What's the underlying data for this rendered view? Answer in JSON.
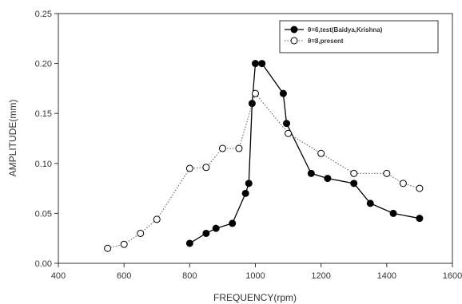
{
  "chart_data": {
    "type": "line",
    "xlabel": "FREQUENCY(rpm)",
    "ylabel": "AMPLITUDE(mm)",
    "xlim": [
      400,
      1600
    ],
    "ylim": [
      0,
      0.25
    ],
    "xticks": [
      400,
      600,
      800,
      1000,
      1200,
      1400,
      1600
    ],
    "yticks": [
      0.0,
      0.05,
      0.1,
      0.15,
      0.2,
      0.25
    ],
    "xtick_labels": [
      "400",
      "600",
      "800",
      "1000",
      "1200",
      "1400",
      "1600"
    ],
    "ytick_labels": [
      "0.00",
      "0.05",
      "0.10",
      "0.15",
      "0.20",
      "0.25"
    ],
    "grid": false,
    "legend_position": "top-right",
    "series": [
      {
        "name": "θ=6,test(Baidya,Krishna)",
        "marker": "filled-circle",
        "line_style": "solid",
        "color": "#000000",
        "x": [
          800,
          850,
          880,
          930,
          970,
          980,
          990,
          1000,
          1020,
          1085,
          1095,
          1170,
          1220,
          1300,
          1350,
          1420,
          1500
        ],
        "y": [
          0.02,
          0.03,
          0.035,
          0.04,
          0.07,
          0.08,
          0.16,
          0.2,
          0.2,
          0.17,
          0.14,
          0.09,
          0.085,
          0.08,
          0.06,
          0.05,
          0.045
        ]
      },
      {
        "name": "θ=8,present",
        "marker": "open-circle",
        "line_style": "dotted",
        "color": "#000000",
        "x": [
          550,
          600,
          650,
          700,
          800,
          850,
          900,
          950,
          1000,
          1100,
          1200,
          1300,
          1400,
          1450,
          1500
        ],
        "y": [
          0.015,
          0.019,
          0.03,
          0.044,
          0.095,
          0.096,
          0.115,
          0.115,
          0.17,
          0.13,
          0.11,
          0.09,
          0.09,
          0.08,
          0.075
        ]
      }
    ]
  }
}
